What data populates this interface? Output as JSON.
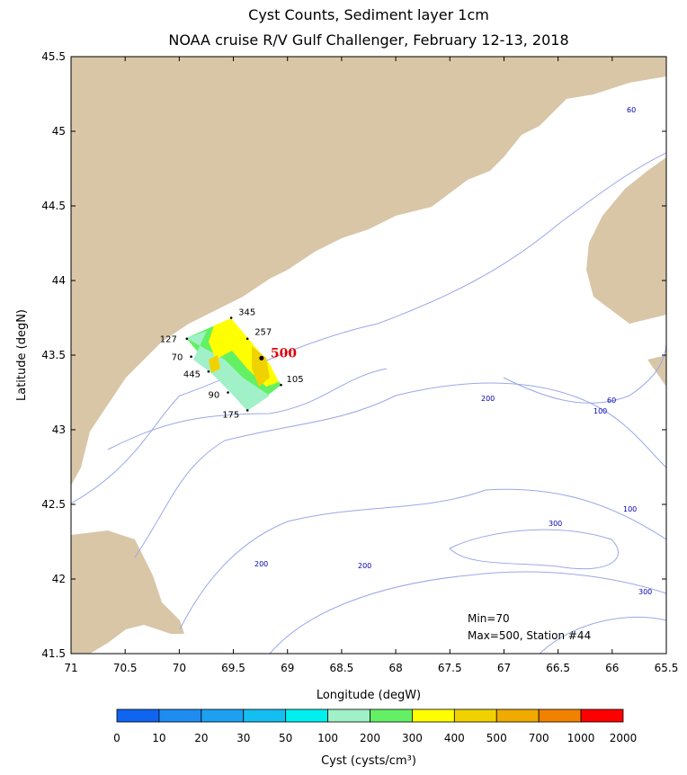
{
  "title": "Cyst Counts, Sediment layer 1cm",
  "subtitle": "NOAA cruise R/V Gulf Challenger, February 12-13, 2018",
  "map": {
    "xlabel": "Longitude (degW)",
    "ylabel": "Latitude (degN)",
    "xlim": [
      71,
      65.5
    ],
    "ylim": [
      41.5,
      45.5
    ],
    "xticks": [
      71,
      70.5,
      70,
      69.5,
      69,
      68.5,
      68,
      67.5,
      67,
      66.5,
      66,
      65.5
    ],
    "yticks": [
      41.5,
      42,
      42.5,
      43,
      43.5,
      44,
      44.5,
      45,
      45.5
    ],
    "stations": [
      {
        "value": 345,
        "lon": 69.52,
        "lat": 43.75
      },
      {
        "value": 257,
        "lon": 69.37,
        "lat": 43.61
      },
      {
        "value": 500,
        "lon": 69.24,
        "lat": 43.48
      },
      {
        "value": 105,
        "lon": 69.06,
        "lat": 43.3
      },
      {
        "value": 127,
        "lon": 69.93,
        "lat": 43.61
      },
      {
        "value": 70,
        "lon": 69.89,
        "lat": 43.49
      },
      {
        "value": 445,
        "lon": 69.73,
        "lat": 43.39
      },
      {
        "value": 90,
        "lon": 69.55,
        "lat": 43.25
      },
      {
        "value": 175,
        "lon": 69.37,
        "lat": 43.13
      }
    ],
    "contour_labels": [
      60,
      200,
      60,
      100,
      100,
      300,
      200,
      200,
      300
    ],
    "min_text": "Min=70",
    "max_text": "Max=500, Station #44"
  },
  "colorbar": {
    "label": "Cyst (cysts/cm³)",
    "ticks": [
      0,
      10,
      20,
      30,
      50,
      100,
      200,
      300,
      400,
      500,
      700,
      1000,
      2000
    ],
    "colors": [
      "#0f64f0",
      "#1e8cf0",
      "#1ea0f0",
      "#14bef0",
      "#00f0f0",
      "#a0f0c8",
      "#64f064",
      "#ffff00",
      "#f0d200",
      "#f0aa00",
      "#f08200",
      "#ff0000"
    ]
  }
}
